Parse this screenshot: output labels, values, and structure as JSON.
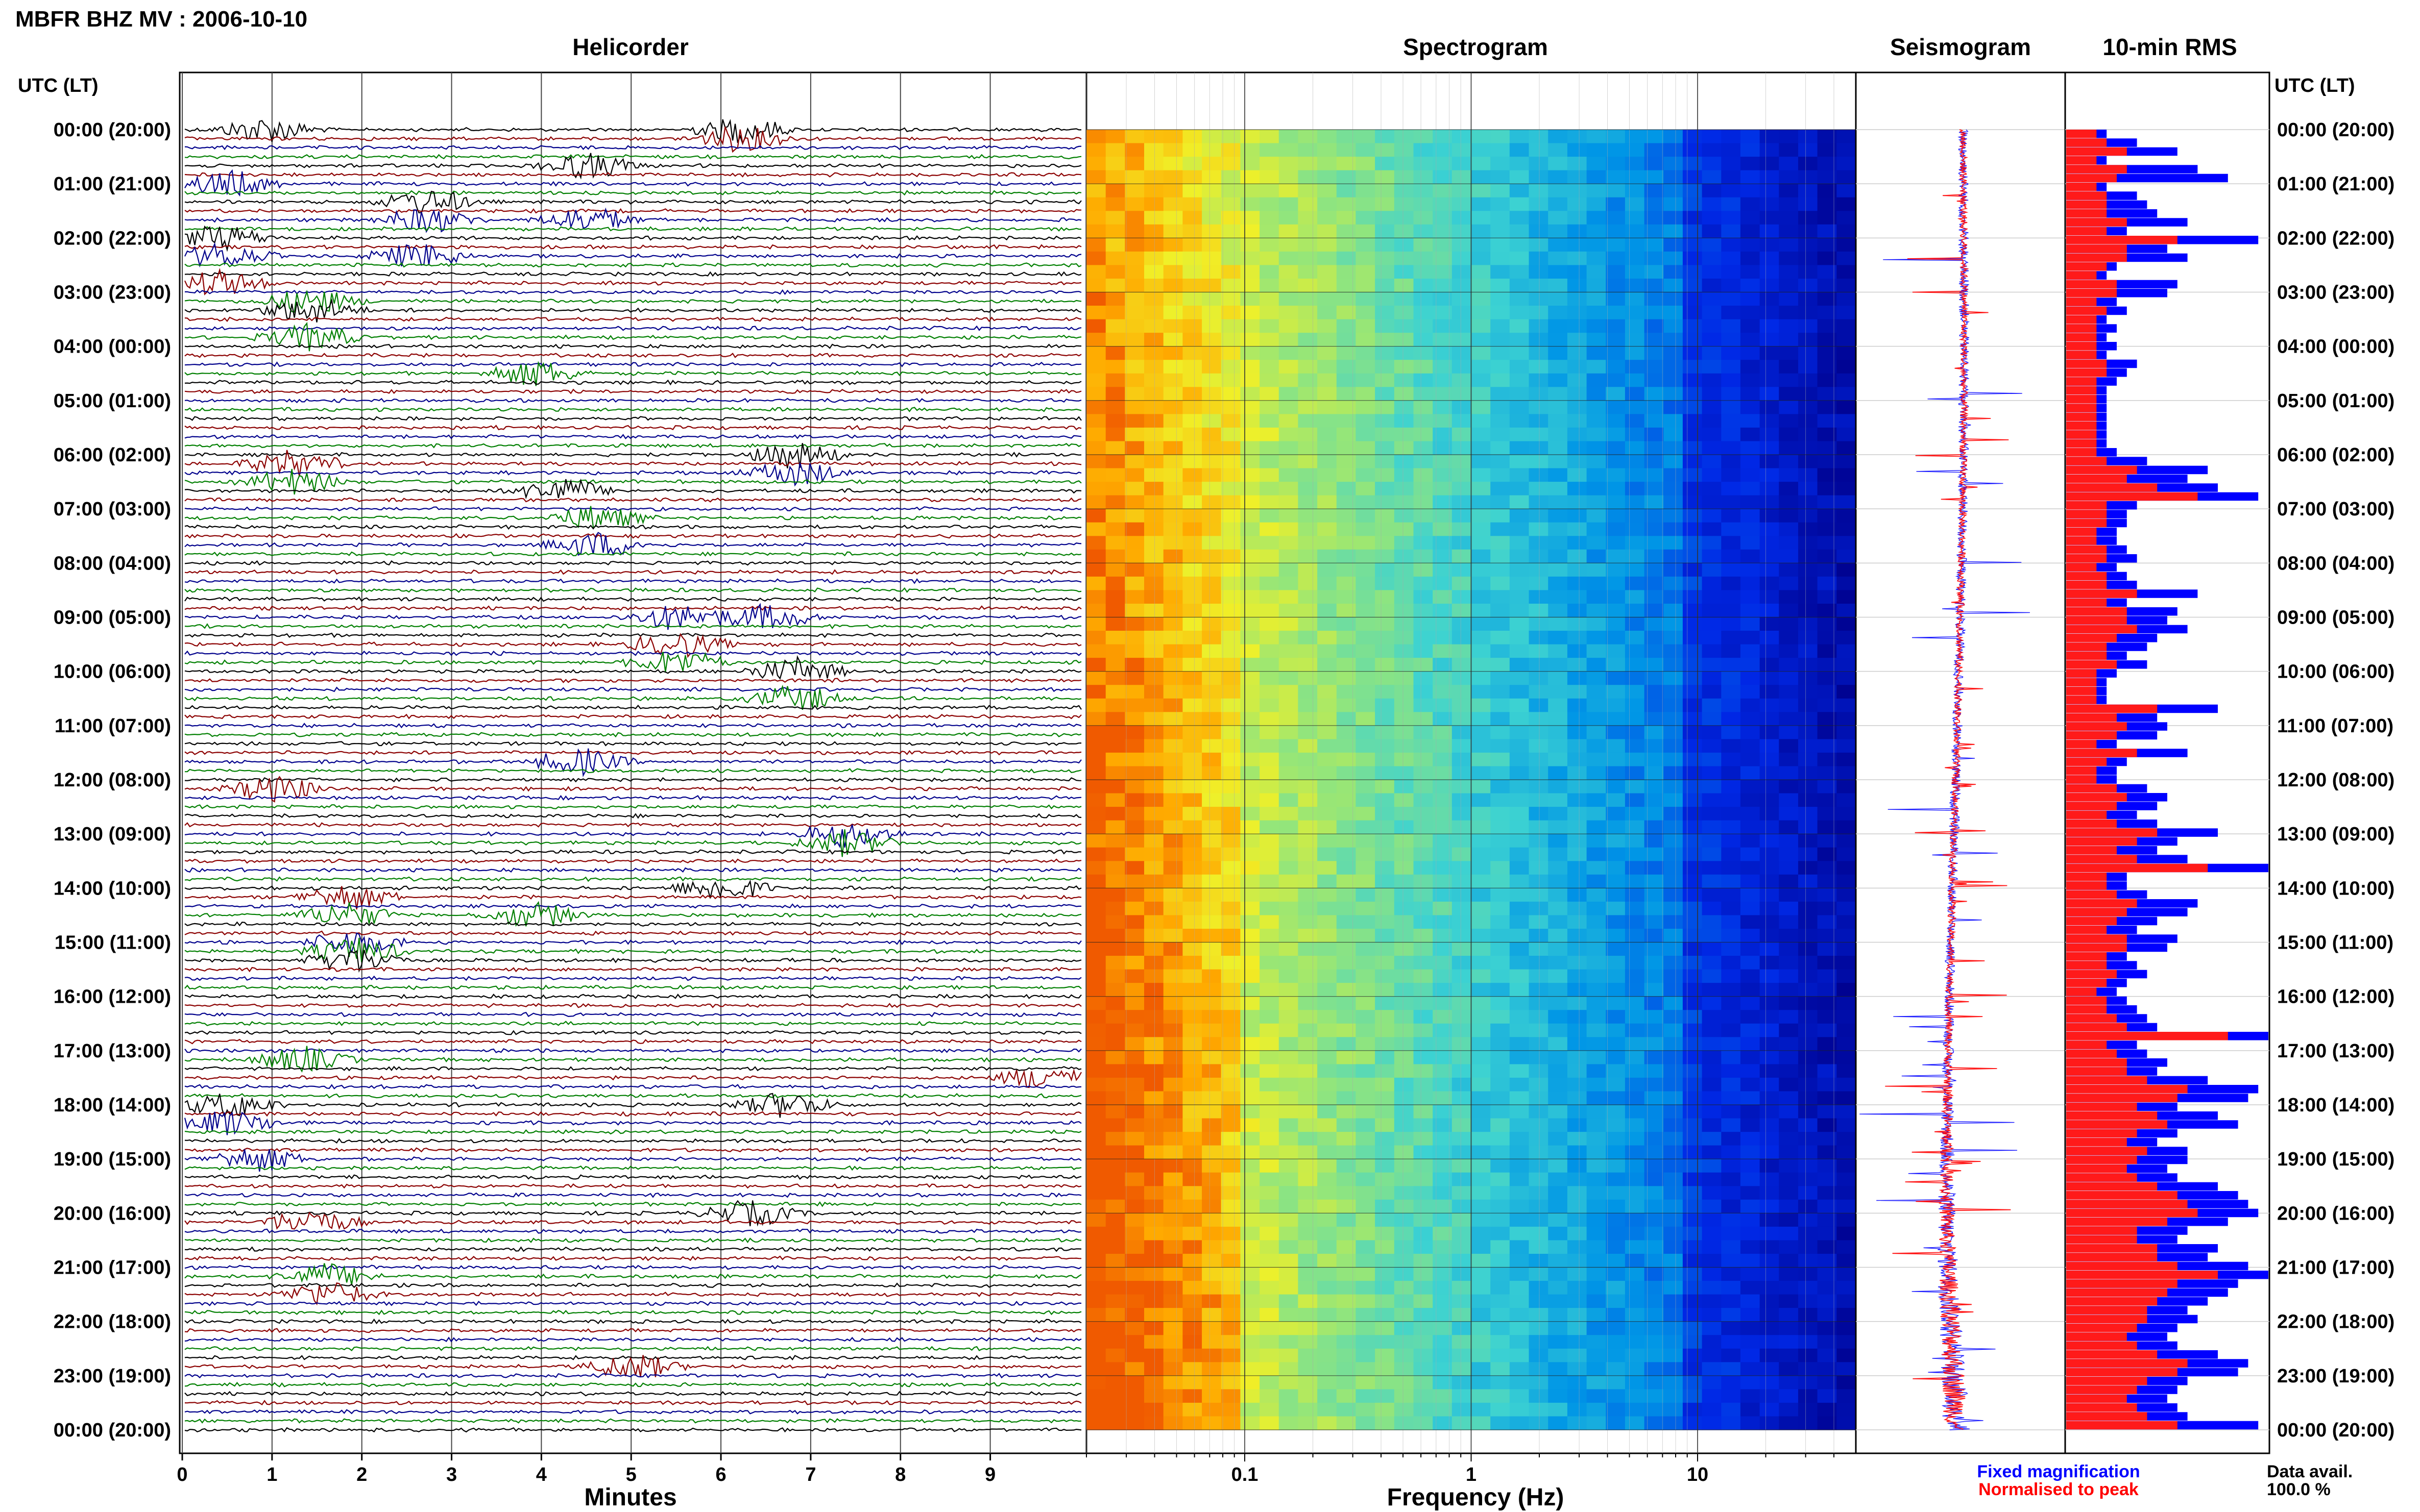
{
  "page_title": "MBFR BHZ MV : 2006-10-10",
  "panels": {
    "helicorder": "Helicorder",
    "spectrogram": "Spectrogram",
    "seismogram": "Seismogram",
    "rms": "10-min RMS"
  },
  "time_axis_title": "UTC (LT)",
  "time_labels": [
    "00:00 (20:00)",
    "01:00 (21:00)",
    "02:00 (22:00)",
    "03:00 (23:00)",
    "04:00 (00:00)",
    "05:00 (01:00)",
    "06:00 (02:00)",
    "07:00 (03:00)",
    "08:00 (04:00)",
    "09:00 (05:00)",
    "10:00 (06:00)",
    "11:00 (07:00)",
    "12:00 (08:00)",
    "13:00 (09:00)",
    "14:00 (10:00)",
    "15:00 (11:00)",
    "16:00 (12:00)",
    "17:00 (13:00)",
    "18:00 (14:00)",
    "19:00 (15:00)",
    "20:00 (16:00)",
    "21:00 (17:00)",
    "22:00 (18:00)",
    "23:00 (19:00)",
    "00:00 (20:00)"
  ],
  "helicorder_x_ticks": [
    "0",
    "1",
    "2",
    "3",
    "4",
    "5",
    "6",
    "7",
    "8",
    "9"
  ],
  "helicorder_x_label": "Minutes",
  "spectrogram_x_ticks": [
    "0.1",
    "1",
    "10"
  ],
  "spectrogram_x_label": "Frequency (Hz)",
  "legend": {
    "fixed": "Fixed magnification",
    "normalised": "Normalised to peak",
    "fixed_color": "#0000ff",
    "normalised_color": "#ff0000"
  },
  "data_avail": {
    "label": "Data avail.",
    "value": "100.0 %"
  },
  "colors": {
    "trace_cycle": [
      "#000000",
      "#8b0000",
      "#00008b",
      "#007f00"
    ],
    "spectrogram_low": "#ff9900",
    "spectrogram_mid": "#33ccdd",
    "spectrogram_high": "#00008b"
  },
  "chart_data": {
    "type": "heatmap",
    "helicorder": {
      "x_unit": "minutes",
      "xlim": [
        0,
        10
      ],
      "lines_per_hour": 6,
      "hours": 24,
      "line_color_cycle": [
        "black",
        "darkred",
        "darkblue",
        "green"
      ],
      "notable_events_hour_minute": [
        [
          0,
          4.5
        ],
        [
          0,
          6.2
        ],
        [
          0,
          0.9
        ],
        [
          1,
          0.5
        ],
        [
          1,
          4.5
        ],
        [
          1,
          2.7
        ],
        [
          2,
          0.4
        ],
        [
          2,
          2.6
        ],
        [
          3,
          1.4
        ],
        [
          4,
          3.9
        ],
        [
          6,
          1.2
        ],
        [
          6,
          4.2
        ],
        [
          6,
          6.8
        ],
        [
          7,
          4.6
        ],
        [
          9,
          5.5
        ],
        [
          9,
          6.5
        ],
        [
          10,
          6.8
        ],
        [
          11,
          4.4
        ],
        [
          12,
          1.0
        ],
        [
          13,
          7.4
        ],
        [
          14,
          1.8
        ],
        [
          14,
          3.9
        ],
        [
          14,
          6.0
        ],
        [
          15,
          1.9
        ],
        [
          17,
          1.3
        ],
        [
          17,
          9.6
        ],
        [
          18,
          0.5
        ],
        [
          18,
          6.7
        ],
        [
          19,
          0.8
        ],
        [
          20,
          1.4
        ],
        [
          20,
          6.3
        ],
        [
          21,
          1.6
        ],
        [
          22,
          5.0
        ]
      ]
    },
    "spectrogram": {
      "x_unit": "Hz",
      "x_scale": "log",
      "xlim": [
        0.02,
        50
      ],
      "description_values": "power high (yellow/orange) below ~0.2 Hz, decreasing to dark blue above ~20 Hz"
    },
    "rms_10min": {
      "series": [
        {
          "name": "Fixed magnification",
          "color": "blue",
          "values": [
            0.2,
            0.35,
            0.55,
            0.2,
            0.65,
            0.8,
            0.2,
            0.35,
            0.4,
            0.45,
            0.6,
            0.3,
            0.95,
            0.5,
            0.6,
            0.25,
            0.2,
            0.55,
            0.5,
            0.25,
            0.3,
            0.2,
            0.25,
            0.2,
            0.25,
            0.2,
            0.35,
            0.3,
            0.25,
            0.2,
            0.2,
            0.2,
            0.2,
            0.2,
            0.2,
            0.2,
            0.25,
            0.4,
            0.7,
            0.6,
            0.75,
            0.95,
            0.35,
            0.3,
            0.3,
            0.25,
            0.25,
            0.3,
            0.35,
            0.25,
            0.3,
            0.35,
            0.65,
            0.3,
            0.55,
            0.5,
            0.6,
            0.45,
            0.4,
            0.3,
            0.4,
            0.25,
            0.2,
            0.2,
            0.2,
            0.75,
            0.45,
            0.5,
            0.45,
            0.25,
            0.6,
            0.3,
            0.25,
            0.25,
            0.4,
            0.5,
            0.45,
            0.35,
            0.45,
            0.75,
            0.55,
            0.45,
            0.6,
            1.0,
            0.3,
            0.3,
            0.4,
            0.65,
            0.6,
            0.45,
            0.35,
            0.55,
            0.5,
            0.3,
            0.35,
            0.4,
            0.3,
            0.25,
            0.3,
            0.35,
            0.4,
            0.45,
            1.0,
            0.35,
            0.4,
            0.5,
            0.45,
            0.7,
            0.95,
            0.9,
            0.55,
            0.75,
            0.85,
            0.55,
            0.45,
            0.6,
            0.6,
            0.5,
            0.55,
            0.75,
            0.85,
            0.9,
            0.95,
            0.8,
            0.6,
            0.55,
            0.75,
            0.7,
            0.9,
            1.0,
            0.85,
            0.8,
            0.7,
            0.6,
            0.65,
            0.55,
            0.5,
            0.55,
            0.75,
            0.9,
            0.85,
            0.6,
            0.55,
            0.5,
            0.55,
            0.6,
            0.95
          ]
        },
        {
          "name": "Normalised to peak",
          "color": "red",
          "values": [
            0.15,
            0.2,
            0.3,
            0.15,
            0.3,
            0.25,
            0.15,
            0.2,
            0.2,
            0.2,
            0.3,
            0.2,
            0.55,
            0.3,
            0.3,
            0.2,
            0.15,
            0.25,
            0.25,
            0.15,
            0.2,
            0.15,
            0.15,
            0.15,
            0.15,
            0.15,
            0.2,
            0.2,
            0.15,
            0.15,
            0.15,
            0.15,
            0.15,
            0.15,
            0.15,
            0.15,
            0.15,
            0.2,
            0.35,
            0.3,
            0.45,
            0.65,
            0.2,
            0.2,
            0.2,
            0.15,
            0.15,
            0.2,
            0.2,
            0.15,
            0.2,
            0.2,
            0.35,
            0.2,
            0.3,
            0.3,
            0.35,
            0.25,
            0.2,
            0.2,
            0.25,
            0.15,
            0.15,
            0.15,
            0.15,
            0.45,
            0.25,
            0.3,
            0.25,
            0.15,
            0.35,
            0.2,
            0.15,
            0.15,
            0.25,
            0.3,
            0.25,
            0.2,
            0.25,
            0.45,
            0.35,
            0.25,
            0.35,
            0.7,
            0.2,
            0.2,
            0.25,
            0.35,
            0.3,
            0.25,
            0.2,
            0.3,
            0.3,
            0.2,
            0.2,
            0.25,
            0.2,
            0.15,
            0.2,
            0.2,
            0.25,
            0.3,
            0.8,
            0.2,
            0.25,
            0.3,
            0.3,
            0.4,
            0.6,
            0.55,
            0.35,
            0.45,
            0.5,
            0.35,
            0.3,
            0.4,
            0.35,
            0.3,
            0.35,
            0.45,
            0.55,
            0.6,
            0.65,
            0.5,
            0.35,
            0.35,
            0.45,
            0.45,
            0.55,
            0.75,
            0.55,
            0.5,
            0.45,
            0.4,
            0.4,
            0.35,
            0.3,
            0.35,
            0.45,
            0.6,
            0.55,
            0.4,
            0.35,
            0.3,
            0.35,
            0.4,
            0.55
          ]
        }
      ]
    }
  }
}
